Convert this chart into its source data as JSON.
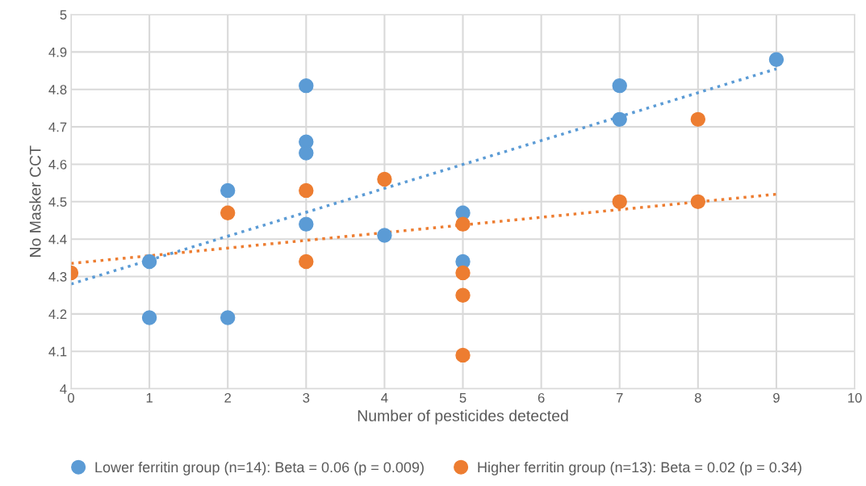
{
  "chart_data": {
    "type": "scatter",
    "xlabel": "Number of pesticides detected",
    "ylabel": "No Masker CCT",
    "xlim": [
      0,
      10
    ],
    "xticks": [
      0,
      1,
      2,
      3,
      4,
      5,
      6,
      7,
      8,
      9,
      10
    ],
    "ylim": [
      4,
      5
    ],
    "yticks": [
      4,
      {
        "value": 4.1,
        "label": "4.1"
      },
      {
        "value": 4.2,
        "label": "4.2"
      },
      {
        "value": 4.3,
        "label": "4.3"
      },
      {
        "value": 4.4,
        "label": "4.4"
      },
      {
        "value": 4.5,
        "label": "4.5"
      },
      {
        "value": 4.6,
        "label": "4.6"
      },
      {
        "value": 4.7,
        "label": "4.7"
      },
      {
        "value": 4.8,
        "label": "4.8"
      },
      {
        "value": 4.9,
        "label": "4.9"
      },
      5
    ],
    "grid": true,
    "legend": "bottom",
    "marker": "circle",
    "series": [
      {
        "name": "Lower ferritin group (n=14): Beta = 0.06 (p = 0.009)",
        "color": "#5b9bd5",
        "x": [
          1,
          1,
          2,
          2,
          3,
          3,
          3,
          3,
          4,
          5,
          5,
          7,
          7,
          9
        ],
        "values": [
          4.34,
          4.19,
          4.53,
          4.19,
          4.81,
          4.66,
          4.63,
          4.44,
          4.41,
          4.47,
          4.34,
          4.81,
          4.72,
          4.88
        ]
      },
      {
        "name": "Higher ferritin group (n=13): Beta = 0.02 (p = 0.34)",
        "color": "#ed7d31",
        "x": [
          0,
          2,
          3,
          3,
          4,
          5,
          5,
          5,
          5,
          7,
          8,
          8
        ],
        "values": [
          4.31,
          4.47,
          4.53,
          4.34,
          4.56,
          4.44,
          4.31,
          4.25,
          4.09,
          4.5,
          4.72,
          4.5
        ]
      },
      {
        "type": "line",
        "line_style": "dotted",
        "marker": "none",
        "color": "#5b9bd5",
        "x": [
          0,
          9
        ],
        "values": [
          4.28,
          4.855
        ]
      },
      {
        "type": "line",
        "line_style": "dotted",
        "marker": "none",
        "color": "#ed7d31",
        "x": [
          0,
          9
        ],
        "values": [
          4.335,
          4.52
        ]
      }
    ]
  }
}
